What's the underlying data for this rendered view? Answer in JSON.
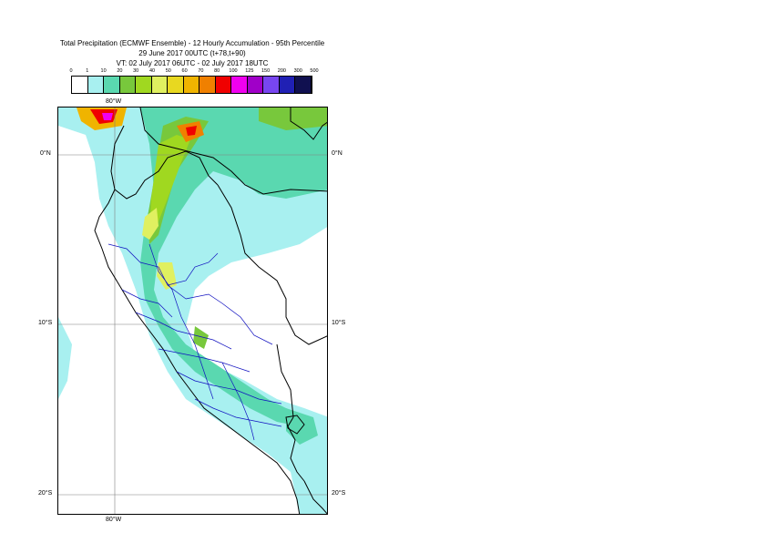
{
  "title": {
    "line1": "Total Precipitation (ECMWF Ensemble) - 12 Hourly Accumulation - 95th Percentile",
    "line2": "29 June 2017 00UTC (t+78,t+90)",
    "line3": "VT: 02 July 2017 06UTC - 02 July 2017 18UTC"
  },
  "legend": {
    "thresholds": [
      "0",
      "1",
      "10",
      "20",
      "30",
      "40",
      "50",
      "60",
      "70",
      "80",
      "100",
      "125",
      "150",
      "200",
      "300",
      "500"
    ],
    "colors": [
      "#ffffff",
      "#a8f0f0",
      "#5ad8b0",
      "#78c83c",
      "#a0d820",
      "#e0f060",
      "#e8d820",
      "#f0b400",
      "#f08000",
      "#f00000",
      "#f000f0",
      "#a000c8",
      "#7846f0",
      "#2020b4",
      "#101050"
    ]
  },
  "map": {
    "grid_labels": {
      "top_lon": "80°W",
      "bottom_lon": "80°W",
      "left_lat_0": "0°N",
      "right_lat_0": "0°N",
      "left_lat_10": "10°S",
      "right_lat_10": "10°S",
      "left_lat_20": "20°S",
      "right_lat_20": "20°S"
    }
  }
}
